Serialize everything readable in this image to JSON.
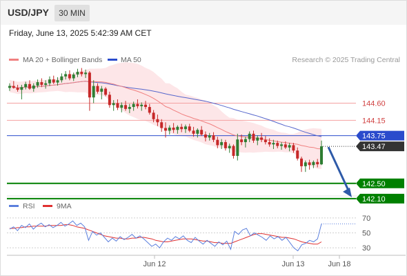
{
  "header": {
    "symbol": "USD/JPY",
    "timeframe": "30 MIN",
    "datetime": "Friday, June 13, 2025 5:42:39 AM CET"
  },
  "legend": {
    "ma20": "MA 20 + Bollinger Bands",
    "ma50": "MA 50",
    "source": "Research © 2025 Trading Central"
  },
  "rsi_legend": {
    "rsi": "RSI",
    "ma9": "9MA"
  },
  "colors": {
    "up": "#2e7d32",
    "down": "#c62828",
    "ma20": "#f08080",
    "band_fill": "#fde2e4",
    "ma50": "#5566cc",
    "support": "#008000",
    "current": "#2a4bcc",
    "rsi": "#5b7fdd",
    "arrow": "#2e5aa8"
  },
  "chart_data": [
    {
      "type": "candlestick",
      "title": "USD/JPY",
      "timeframe": "30 MIN",
      "x_labels": [
        "Jun 12",
        "Jun 13",
        "Jun 18"
      ],
      "ylim": [
        141.9,
        146.0
      ],
      "current_price": 143.47,
      "levels": [
        {
          "label": "144.60",
          "value": 144.6,
          "kind": "resistance"
        },
        {
          "label": "144.15",
          "value": 144.15,
          "kind": "resistance"
        },
        {
          "label": "143.75",
          "value": 143.75,
          "kind": "pivot"
        },
        {
          "label": "142.50",
          "value": 142.5,
          "kind": "support"
        },
        {
          "label": "142.10",
          "value": 142.1,
          "kind": "support"
        }
      ],
      "forecast": {
        "from": 143.47,
        "to": 142.1,
        "direction": "down"
      },
      "candles": [
        [
          145.0,
          145.12,
          144.92,
          145.05
        ],
        [
          145.05,
          145.18,
          144.98,
          145.0
        ],
        [
          145.0,
          145.08,
          144.9,
          144.95
        ],
        [
          144.95,
          145.08,
          144.7,
          145.02
        ],
        [
          145.02,
          145.16,
          144.96,
          145.1
        ],
        [
          145.1,
          145.2,
          144.95,
          144.98
        ],
        [
          144.98,
          145.12,
          144.9,
          145.06
        ],
        [
          145.06,
          145.22,
          145.0,
          145.15
        ],
        [
          145.15,
          145.25,
          145.02,
          145.08
        ],
        [
          145.08,
          145.2,
          144.98,
          145.12
        ],
        [
          145.12,
          145.3,
          145.05,
          145.22
        ],
        [
          145.22,
          145.32,
          145.1,
          145.14
        ],
        [
          145.14,
          145.28,
          145.06,
          145.2
        ],
        [
          145.2,
          145.38,
          145.14,
          145.3
        ],
        [
          145.3,
          145.44,
          145.22,
          145.36
        ],
        [
          145.36,
          145.46,
          145.2,
          145.25
        ],
        [
          145.25,
          145.4,
          145.18,
          145.35
        ],
        [
          145.35,
          145.5,
          145.28,
          145.42
        ],
        [
          145.42,
          145.52,
          145.3,
          145.36
        ],
        [
          145.36,
          145.48,
          145.26,
          145.4
        ],
        [
          145.4,
          145.44,
          144.4,
          144.75
        ],
        [
          144.75,
          145.2,
          144.6,
          145.05
        ],
        [
          145.05,
          145.12,
          144.85,
          144.9
        ],
        [
          144.9,
          145.05,
          144.7,
          144.98
        ],
        [
          144.98,
          145.02,
          144.78,
          144.82
        ],
        [
          144.82,
          144.9,
          144.48,
          144.55
        ],
        [
          144.55,
          144.68,
          144.4,
          144.6
        ],
        [
          144.6,
          144.7,
          144.42,
          144.48
        ],
        [
          144.48,
          144.62,
          144.36,
          144.55
        ],
        [
          144.55,
          144.66,
          144.4,
          144.45
        ],
        [
          144.45,
          144.58,
          144.34,
          144.5
        ],
        [
          144.5,
          144.64,
          144.4,
          144.58
        ],
        [
          144.58,
          144.7,
          144.46,
          144.52
        ],
        [
          144.52,
          144.62,
          144.4,
          144.56
        ],
        [
          144.56,
          144.66,
          144.44,
          144.5
        ],
        [
          144.5,
          144.58,
          144.3,
          144.35
        ],
        [
          144.35,
          144.42,
          144.1,
          144.18
        ],
        [
          144.18,
          144.3,
          144.0,
          144.1
        ],
        [
          144.1,
          144.18,
          143.85,
          143.95
        ],
        [
          143.95,
          144.1,
          143.7,
          143.88
        ],
        [
          143.88,
          144.02,
          143.78,
          143.96
        ],
        [
          143.96,
          144.08,
          143.82,
          143.9
        ],
        [
          143.9,
          144.02,
          143.8,
          143.98
        ],
        [
          143.98,
          144.06,
          143.84,
          143.92
        ],
        [
          143.92,
          144.04,
          143.82,
          143.99
        ],
        [
          143.99,
          144.06,
          143.84,
          143.88
        ],
        [
          143.88,
          143.98,
          143.72,
          143.8
        ],
        [
          143.8,
          143.94,
          143.7,
          143.9
        ],
        [
          143.9,
          144.0,
          143.74,
          143.78
        ],
        [
          143.78,
          143.86,
          143.6,
          143.7
        ],
        [
          143.7,
          143.82,
          143.62,
          143.76
        ],
        [
          143.76,
          143.84,
          143.58,
          143.64
        ],
        [
          143.64,
          143.72,
          143.42,
          143.5
        ],
        [
          143.5,
          143.66,
          143.4,
          143.58
        ],
        [
          143.58,
          143.64,
          143.36,
          143.42
        ],
        [
          143.42,
          143.54,
          143.3,
          143.48
        ],
        [
          143.48,
          143.52,
          143.15,
          143.22
        ],
        [
          143.22,
          143.8,
          143.1,
          143.65
        ],
        [
          143.65,
          143.78,
          143.5,
          143.58
        ],
        [
          143.58,
          143.72,
          143.44,
          143.66
        ],
        [
          143.66,
          143.86,
          143.58,
          143.8
        ],
        [
          143.8,
          143.88,
          143.56,
          143.62
        ],
        [
          143.62,
          143.76,
          143.5,
          143.7
        ],
        [
          143.7,
          143.82,
          143.58,
          143.64
        ],
        [
          143.64,
          143.74,
          143.52,
          143.58
        ],
        [
          143.58,
          143.68,
          143.46,
          143.52
        ],
        [
          143.52,
          143.64,
          143.4,
          143.56
        ],
        [
          143.56,
          143.62,
          143.42,
          143.48
        ],
        [
          143.48,
          143.58,
          143.38,
          143.52
        ],
        [
          143.52,
          143.6,
          143.4,
          143.44
        ],
        [
          143.44,
          143.56,
          143.34,
          143.5
        ],
        [
          143.5,
          143.56,
          143.3,
          143.36
        ],
        [
          143.36,
          143.44,
          143.1,
          143.15
        ],
        [
          143.15,
          143.2,
          142.8,
          142.95
        ],
        [
          142.95,
          143.1,
          142.8,
          143.05
        ],
        [
          143.05,
          143.12,
          142.86,
          142.98
        ],
        [
          142.98,
          143.1,
          142.9,
          143.06
        ],
        [
          143.06,
          143.14,
          142.92,
          143.0
        ],
        [
          143.0,
          143.62,
          142.98,
          143.47
        ]
      ]
    },
    {
      "type": "line",
      "title": "RSI",
      "ylim": [
        20,
        80
      ],
      "y_ticks": [
        70,
        50,
        30
      ],
      "series": [
        {
          "name": "RSI",
          "values": [
            55,
            58,
            53,
            60,
            57,
            62,
            55,
            60,
            63,
            58,
            61,
            57,
            60,
            64,
            59,
            62,
            66,
            60,
            63,
            58,
            40,
            52,
            47,
            50,
            44,
            38,
            43,
            39,
            45,
            41,
            44,
            48,
            43,
            46,
            42,
            37,
            32,
            35,
            30,
            38,
            43,
            40,
            45,
            42,
            46,
            40,
            37,
            44,
            39,
            35,
            40,
            36,
            32,
            38,
            34,
            39,
            28,
            52,
            48,
            54,
            56,
            46,
            50,
            47,
            44,
            40,
            46,
            42,
            45,
            40,
            44,
            37,
            30,
            26,
            34,
            36,
            40,
            38,
            42,
            62
          ]
        },
        {
          "name": "9MA",
          "values": [
            56,
            56,
            57,
            57,
            58,
            58,
            59,
            59,
            59,
            59,
            60,
            60,
            60,
            60,
            61,
            61,
            60,
            58,
            57,
            56,
            54,
            52,
            50,
            48,
            46,
            45,
            44,
            43,
            43,
            42,
            42,
            43,
            43,
            44,
            44,
            43,
            42,
            40,
            39,
            38,
            38,
            39,
            40,
            41,
            42,
            42,
            42,
            41,
            40,
            39,
            39,
            38,
            37,
            37,
            36,
            36,
            36,
            38,
            40,
            42,
            44,
            46,
            48,
            49,
            49,
            48,
            47,
            46,
            45,
            44,
            44,
            43,
            42,
            40,
            38,
            37,
            36,
            35,
            35,
            38
          ]
        }
      ]
    }
  ]
}
